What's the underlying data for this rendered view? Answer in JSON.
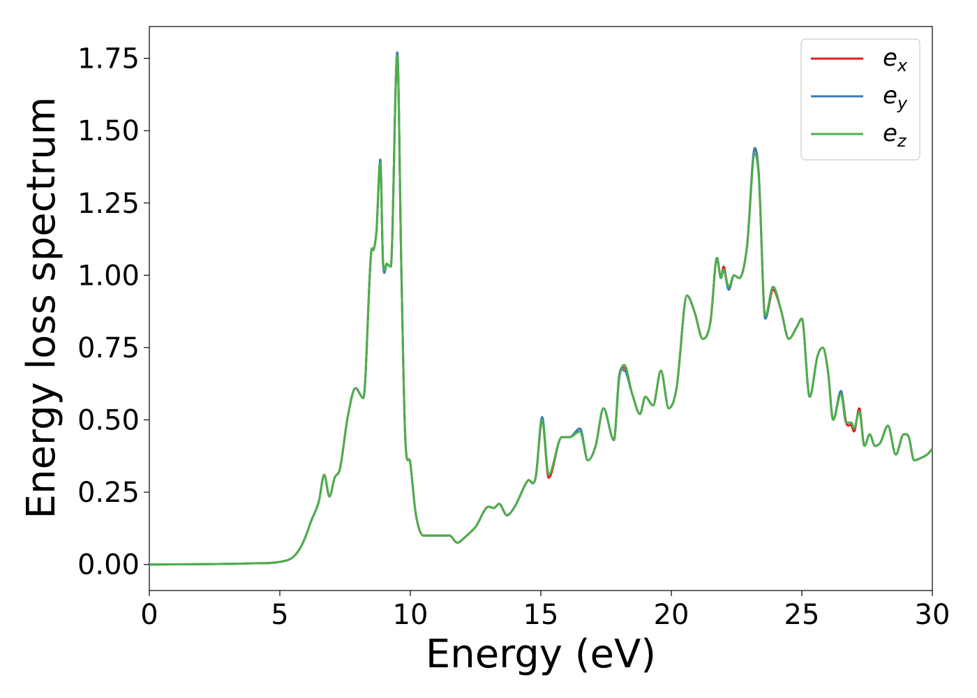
{
  "chart_data": {
    "type": "line",
    "title": "",
    "xlabel": "Energy (eV)",
    "ylabel": "Energy loss spectrum",
    "xlim": [
      0,
      30
    ],
    "ylim": [
      -0.09,
      1.86
    ],
    "xticks": [
      0,
      5,
      10,
      15,
      20,
      25,
      30
    ],
    "xtick_labels": [
      "0",
      "5",
      "10",
      "15",
      "20",
      "25",
      "30"
    ],
    "yticks": [
      0,
      0.25,
      0.5,
      0.75,
      1.0,
      1.25,
      1.5,
      1.75
    ],
    "ytick_labels": [
      "0.00",
      "0.25",
      "0.50",
      "0.75",
      "1.00",
      "1.25",
      "1.50",
      "1.75"
    ],
    "grid": false,
    "legend_position": "top-right",
    "series": [
      {
        "name": "e_x",
        "label_base": "e",
        "label_sub": "x",
        "color": "#e41a1c",
        "x": [
          0,
          2,
          4,
          5,
          5.5,
          5.8,
          6.0,
          6.2,
          6.5,
          6.7,
          6.9,
          7.1,
          7.3,
          7.6,
          7.9,
          8.2,
          8.5,
          8.6,
          8.7,
          8.85,
          8.95,
          9.1,
          9.25,
          9.5,
          9.65,
          9.8,
          10.0,
          10.2,
          10.5,
          11.0,
          11.5,
          11.8,
          12.1,
          12.5,
          13.0,
          13.2,
          13.4,
          13.7,
          14.0,
          14.5,
          14.8,
          15.05,
          15.3,
          15.8,
          16.1,
          16.5,
          16.8,
          17.1,
          17.4,
          17.8,
          18.0,
          18.2,
          18.5,
          18.8,
          19.0,
          19.3,
          19.6,
          19.9,
          20.2,
          20.6,
          20.9,
          21.2,
          21.5,
          21.75,
          21.9,
          22.0,
          22.2,
          22.4,
          22.6,
          22.9,
          23.2,
          23.35,
          23.6,
          23.9,
          24.2,
          24.5,
          24.8,
          25.0,
          25.3,
          25.6,
          25.8,
          26.0,
          26.2,
          26.5,
          26.7,
          26.9,
          27.0,
          27.2,
          27.4,
          27.6,
          27.8,
          28.0,
          28.3,
          28.6,
          28.9,
          29.1,
          29.3,
          29.6,
          29.8,
          30.0
        ],
        "y": [
          0,
          0.001,
          0.004,
          0.009,
          0.025,
          0.06,
          0.1,
          0.15,
          0.22,
          0.31,
          0.235,
          0.3,
          0.33,
          0.51,
          0.61,
          0.575,
          1.08,
          1.09,
          1.15,
          1.4,
          1.05,
          1.04,
          1.03,
          1.77,
          1.05,
          0.45,
          0.35,
          0.18,
          0.1,
          0.1,
          0.1,
          0.075,
          0.095,
          0.13,
          0.2,
          0.195,
          0.21,
          0.17,
          0.2,
          0.29,
          0.3,
          0.5,
          0.3,
          0.44,
          0.44,
          0.47,
          0.36,
          0.41,
          0.54,
          0.43,
          0.65,
          0.68,
          0.59,
          0.52,
          0.58,
          0.55,
          0.67,
          0.54,
          0.61,
          0.93,
          0.87,
          0.78,
          0.84,
          1.06,
          0.99,
          1.03,
          0.95,
          1.0,
          0.99,
          1.1,
          1.44,
          1.35,
          0.85,
          0.95,
          0.88,
          0.78,
          0.82,
          0.85,
          0.58,
          0.72,
          0.75,
          0.67,
          0.5,
          0.6,
          0.49,
          0.48,
          0.46,
          0.54,
          0.41,
          0.45,
          0.41,
          0.42,
          0.48,
          0.38,
          0.45,
          0.44,
          0.36,
          0.37,
          0.38,
          0.4
        ]
      },
      {
        "name": "e_y",
        "label_base": "e",
        "label_sub": "y",
        "color": "#377eb8",
        "x": [
          0,
          2,
          4,
          5,
          5.5,
          5.8,
          6.0,
          6.2,
          6.5,
          6.7,
          6.9,
          7.1,
          7.3,
          7.6,
          7.9,
          8.2,
          8.5,
          8.6,
          8.7,
          8.85,
          8.95,
          9.1,
          9.25,
          9.5,
          9.65,
          9.8,
          10.0,
          10.2,
          10.5,
          11.0,
          11.5,
          11.8,
          12.1,
          12.5,
          13.0,
          13.2,
          13.4,
          13.7,
          14.0,
          14.5,
          14.8,
          15.05,
          15.3,
          15.8,
          16.1,
          16.5,
          16.8,
          17.1,
          17.4,
          17.8,
          18.0,
          18.2,
          18.5,
          18.8,
          19.0,
          19.3,
          19.6,
          19.9,
          20.2,
          20.6,
          20.9,
          21.2,
          21.5,
          21.75,
          21.9,
          22.0,
          22.2,
          22.4,
          22.6,
          22.9,
          23.2,
          23.35,
          23.6,
          23.9,
          24.2,
          24.5,
          24.8,
          25.0,
          25.3,
          25.6,
          25.8,
          26.0,
          26.2,
          26.5,
          26.7,
          26.9,
          27.0,
          27.2,
          27.4,
          27.6,
          27.8,
          28.0,
          28.3,
          28.6,
          28.9,
          29.1,
          29.3,
          29.6,
          29.8,
          30.0
        ],
        "y": [
          0,
          0.001,
          0.004,
          0.009,
          0.025,
          0.06,
          0.1,
          0.15,
          0.22,
          0.31,
          0.235,
          0.3,
          0.33,
          0.51,
          0.61,
          0.575,
          1.08,
          1.09,
          1.15,
          1.4,
          1.05,
          1.04,
          1.03,
          1.77,
          1.05,
          0.45,
          0.35,
          0.18,
          0.1,
          0.1,
          0.1,
          0.075,
          0.095,
          0.13,
          0.2,
          0.195,
          0.21,
          0.17,
          0.2,
          0.29,
          0.3,
          0.51,
          0.31,
          0.44,
          0.44,
          0.47,
          0.36,
          0.41,
          0.54,
          0.43,
          0.65,
          0.67,
          0.59,
          0.52,
          0.58,
          0.55,
          0.67,
          0.54,
          0.61,
          0.93,
          0.87,
          0.78,
          0.84,
          1.06,
          0.99,
          1.02,
          0.95,
          1.0,
          0.99,
          1.1,
          1.44,
          1.35,
          0.85,
          0.96,
          0.88,
          0.78,
          0.82,
          0.85,
          0.58,
          0.72,
          0.75,
          0.67,
          0.5,
          0.6,
          0.49,
          0.49,
          0.47,
          0.53,
          0.41,
          0.45,
          0.41,
          0.42,
          0.48,
          0.38,
          0.45,
          0.44,
          0.36,
          0.37,
          0.38,
          0.4
        ]
      },
      {
        "name": "e_z",
        "label_base": "e",
        "label_sub": "z",
        "color": "#4daf4a",
        "x": [
          0,
          2,
          4,
          5,
          5.5,
          5.8,
          6.0,
          6.2,
          6.5,
          6.7,
          6.9,
          7.1,
          7.3,
          7.6,
          7.9,
          8.2,
          8.5,
          8.6,
          8.7,
          8.85,
          8.95,
          9.1,
          9.25,
          9.5,
          9.65,
          9.8,
          10.0,
          10.2,
          10.5,
          11.0,
          11.5,
          11.8,
          12.1,
          12.5,
          13.0,
          13.2,
          13.4,
          13.7,
          14.0,
          14.5,
          14.8,
          15.05,
          15.3,
          15.8,
          16.1,
          16.5,
          16.8,
          17.1,
          17.4,
          17.8,
          18.0,
          18.2,
          18.5,
          18.8,
          19.0,
          19.3,
          19.6,
          19.9,
          20.2,
          20.6,
          20.9,
          21.2,
          21.5,
          21.75,
          21.9,
          22.0,
          22.2,
          22.4,
          22.6,
          22.9,
          23.2,
          23.35,
          23.6,
          23.9,
          24.2,
          24.5,
          24.8,
          25.0,
          25.3,
          25.6,
          25.8,
          26.0,
          26.2,
          26.5,
          26.7,
          26.9,
          27.0,
          27.2,
          27.4,
          27.6,
          27.8,
          28.0,
          28.3,
          28.6,
          28.9,
          29.1,
          29.3,
          29.6,
          29.8,
          30.0
        ],
        "y": [
          0,
          0.001,
          0.004,
          0.009,
          0.025,
          0.06,
          0.1,
          0.15,
          0.22,
          0.31,
          0.235,
          0.3,
          0.33,
          0.51,
          0.61,
          0.575,
          1.08,
          1.09,
          1.15,
          1.39,
          1.06,
          1.04,
          1.03,
          1.76,
          1.05,
          0.45,
          0.35,
          0.18,
          0.1,
          0.1,
          0.1,
          0.075,
          0.095,
          0.13,
          0.2,
          0.195,
          0.21,
          0.17,
          0.2,
          0.29,
          0.3,
          0.5,
          0.31,
          0.44,
          0.44,
          0.46,
          0.36,
          0.41,
          0.54,
          0.43,
          0.64,
          0.69,
          0.59,
          0.52,
          0.58,
          0.55,
          0.67,
          0.54,
          0.61,
          0.93,
          0.87,
          0.78,
          0.84,
          1.06,
          0.99,
          1.02,
          0.96,
          1.0,
          0.99,
          1.1,
          1.42,
          1.34,
          0.86,
          0.96,
          0.88,
          0.78,
          0.82,
          0.85,
          0.58,
          0.72,
          0.75,
          0.67,
          0.5,
          0.59,
          0.49,
          0.49,
          0.47,
          0.53,
          0.41,
          0.45,
          0.41,
          0.42,
          0.48,
          0.38,
          0.45,
          0.44,
          0.36,
          0.37,
          0.38,
          0.4
        ]
      }
    ]
  }
}
